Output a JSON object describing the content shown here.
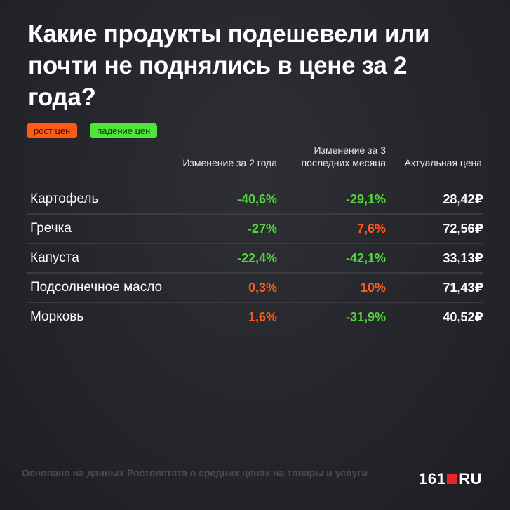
{
  "title": "Какие продукты подешевели или почти не поднялись в цене за 2 года?",
  "legend": {
    "up": "рост цен",
    "down": "падение цен"
  },
  "headers": {
    "col1": "Изменение за 2 года",
    "col2": "Изменение за 3 последних месяца",
    "col3": "Актуальная цена"
  },
  "rows": [
    {
      "name": "Картофель",
      "change_2y": "-40,6%",
      "change_3m": "-29,1%",
      "price": "28,42₽"
    },
    {
      "name": "Гречка",
      "change_2y": "-27%",
      "change_3m": "7,6%",
      "price": "72,56₽"
    },
    {
      "name": "Капуста",
      "change_2y": "-22,4%",
      "change_3m": "-42,1%",
      "price": "33,13₽"
    },
    {
      "name": "Подсолнечное масло",
      "change_2y": "0,3%",
      "change_3m": "10%",
      "price": "71,43₽"
    },
    {
      "name": "Морковь",
      "change_2y": "1,6%",
      "change_3m": "-31,9%",
      "price": "40,52₽"
    }
  ],
  "source": "Основано на данных Ростовстата о средних ценах на товары и услуги",
  "logo": {
    "left": "161",
    "right": "RU"
  },
  "colors": {
    "up": "#ff5b16",
    "down": "#4fe53a",
    "brand_red": "#e8262a"
  }
}
